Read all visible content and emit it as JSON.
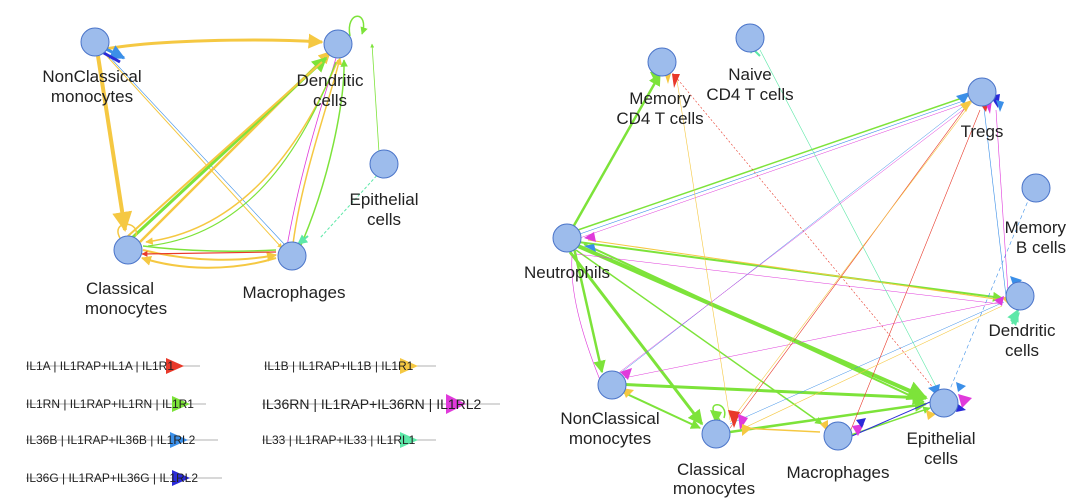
{
  "left_network": {
    "nodes": {
      "nonclassical": [
        "NonClassical",
        "monocytes"
      ],
      "dendritic": [
        "Dendritic",
        "cells"
      ],
      "epithelial": [
        "Epithelial",
        "cells"
      ],
      "classical": [
        "Classical",
        "monocytes"
      ],
      "macrophages": [
        "Macrophages"
      ]
    }
  },
  "right_network": {
    "nodes": {
      "memory_cd4": [
        "Memory",
        "CD4 T cells"
      ],
      "naive_cd4": [
        "Naive",
        "CD4 T cells"
      ],
      "tregs": [
        "Tregs"
      ],
      "memory_b": [
        "Memory",
        "B cells"
      ],
      "neutrophils": [
        "Neutrophils"
      ],
      "dendritic": [
        "Dendritic",
        "cells"
      ],
      "nonclassical": [
        "NonClassical",
        "monocytes"
      ],
      "epithelial": [
        "Epithelial",
        "cells"
      ],
      "classical": [
        "Classical",
        "monocytes"
      ],
      "macrophages": [
        "Macrophages"
      ]
    }
  },
  "legend": [
    {
      "label": "IL1A | IL1RAP+IL1A | IL1R1",
      "color": "#e8392a"
    },
    {
      "label": "IL1B | IL1RAP+IL1B | IL1R1",
      "color": "#f5c842"
    },
    {
      "label": "IL1RN | IL1RAP+IL1RN | IL1R1",
      "color": "#7de33a"
    },
    {
      "label": "IL36RN | IL1RAP+IL36RN | IL1RL2",
      "color": "#e03adb"
    },
    {
      "label": "IL36B | IL1RAP+IL36B | IL1RL2",
      "color": "#3b8fe8"
    },
    {
      "label": "IL33 | IL1RAP+IL33 | IL1RL1",
      "color": "#5de8a8"
    },
    {
      "label": "IL36G | IL1RAP+IL36G | IL1RL2",
      "color": "#2a2ad8"
    }
  ]
}
